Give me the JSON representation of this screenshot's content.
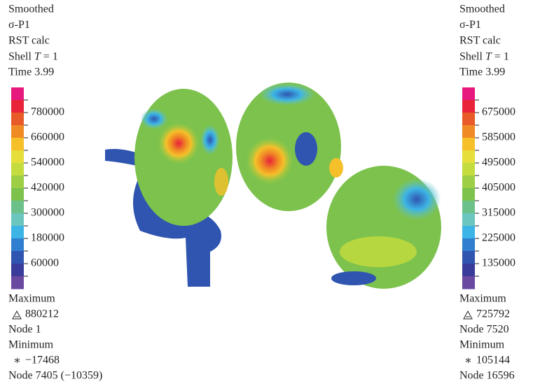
{
  "legends": [
    {
      "lines": [
        "Smoothed",
        "σ-P1",
        "RST calc"
      ],
      "shell": {
        "prefix": "Shell ",
        "variable": "T",
        "suffix": " = 1"
      },
      "time": "Time 3.99",
      "ticks": [
        "780000",
        "660000",
        "540000",
        "420000",
        "300000",
        "180000",
        "60000"
      ],
      "max_label": "Maximum",
      "max_value": "880212",
      "max_node": "Node 1",
      "min_label": "Minimum",
      "min_value": "−17468",
      "min_node": "Node 7405 (−10359)"
    },
    {
      "lines": [
        "Smoothed",
        "σ-P1",
        "RST calc"
      ],
      "shell": {
        "prefix": "Shell ",
        "variable": "T",
        "suffix": " = 1"
      },
      "time": "Time 3.99",
      "ticks": [
        "675000",
        "585000",
        "495000",
        "405000",
        "315000",
        "225000",
        "135000"
      ],
      "max_label": "Maximum",
      "max_value": "725792",
      "max_node": "Node 7520",
      "min_label": "Minimum",
      "min_value": "105144",
      "min_node": "Node 16596"
    }
  ],
  "colorbar_colors": [
    "#e8197e",
    "#e8233a",
    "#e85a28",
    "#f08a24",
    "#f5c02a",
    "#e6de3a",
    "#c5dc3e",
    "#9ccf45",
    "#7cc24c",
    "#6cc08a",
    "#6cc6c0",
    "#3db4e6",
    "#2f7ed0",
    "#2f55b0",
    "#3a3c9c",
    "#6a4aa0"
  ]
}
